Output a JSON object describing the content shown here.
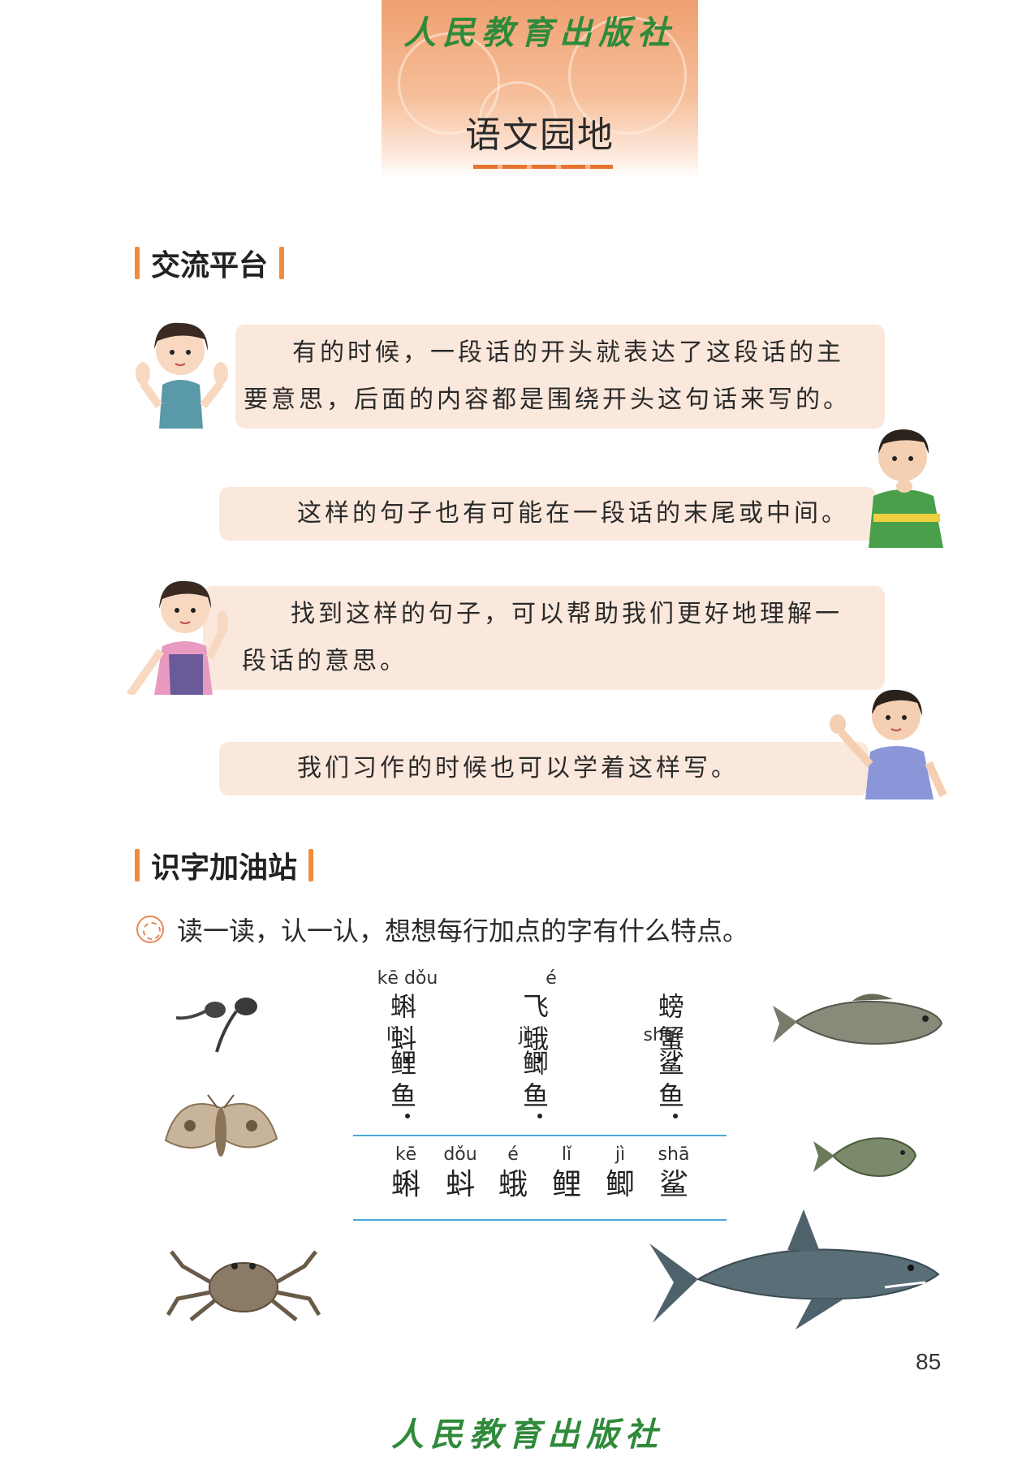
{
  "header": {
    "publisher": "人民教育出版社",
    "title": "语文园地"
  },
  "sections": {
    "exchange": "交流平台",
    "literacy": "识字加油站"
  },
  "dialogue": [
    {
      "speaker": "girl",
      "text": "有的时候，一段话的开头就表达了这段话的主要意思，后面的内容都是围绕开头这句话来写的。"
    },
    {
      "speaker": "boy",
      "text": "这样的句子也有可能在一段话的末尾或中间。"
    },
    {
      "speaker": "girl",
      "text": "找到这样的句子，可以帮助我们更好地理解一段话的意思。"
    },
    {
      "speaker": "boy",
      "text": "我们习作的时候也可以学着这样写。"
    }
  ],
  "instruction": "读一读，认一认，想想每行加点的字有什么特点。",
  "words": [
    {
      "pinyin": "kē dǒu",
      "hanzi": "蝌蚪"
    },
    {
      "pinyin": "é",
      "hanzi": "飞蛾"
    },
    {
      "pinyin": "",
      "hanzi": "螃蟹"
    },
    {
      "pinyin": "lǐ",
      "hanzi": "鲤鱼"
    },
    {
      "pinyin": "jì",
      "hanzi": "鲫鱼"
    },
    {
      "pinyin": "shā",
      "hanzi": "鲨鱼"
    }
  ],
  "summary": [
    {
      "pinyin": "kē",
      "hanzi": "蝌"
    },
    {
      "pinyin": "dǒu",
      "hanzi": "蚪"
    },
    {
      "pinyin": "é",
      "hanzi": "蛾"
    },
    {
      "pinyin": "lǐ",
      "hanzi": "鲤"
    },
    {
      "pinyin": "jì",
      "hanzi": "鲫"
    },
    {
      "pinyin": "shā",
      "hanzi": "鲨"
    }
  ],
  "page_number": "85",
  "footer": {
    "publisher": "人民教育出版社"
  },
  "colors": {
    "accent": "#f08a3c",
    "bubble": "#fbe8dc",
    "publisher": "#2f8a3a",
    "rule": "#4aa8d8"
  }
}
